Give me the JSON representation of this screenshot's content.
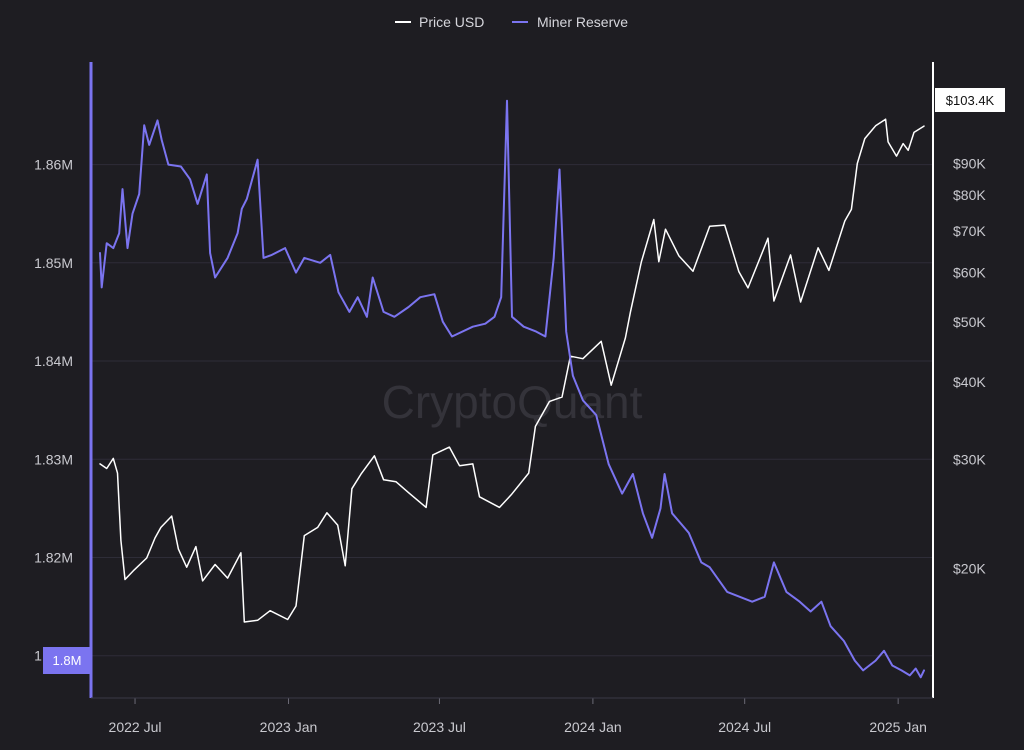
{
  "watermark": "CryptoQuant",
  "chart_data": {
    "type": "line",
    "title": "",
    "legend": {
      "placement": "top-center",
      "entries": [
        "Price USD",
        "Miner Reserve"
      ]
    },
    "grid": true,
    "colors": {
      "price": "#ffffff",
      "reserve": "#7b74f0",
      "background": "#1e1d22",
      "grid": "#2e2d38"
    },
    "x_axis": {
      "type": "date",
      "range": [
        "2022-05-20",
        "2025-02-01"
      ],
      "ticks": [
        {
          "date": "2022-07-01",
          "label": "2022 Jul"
        },
        {
          "date": "2023-01-01",
          "label": "2023 Jan"
        },
        {
          "date": "2023-07-01",
          "label": "2023 Jul"
        },
        {
          "date": "2024-01-01",
          "label": "2024 Jan"
        },
        {
          "date": "2024-07-01",
          "label": "2024 Jul"
        },
        {
          "date": "2025-01-01",
          "label": "2025 Jan"
        }
      ]
    },
    "y_left": {
      "label": "",
      "scale": "linear",
      "range": [
        1806000,
        1868000
      ],
      "ticks": [
        {
          "value": 1810000,
          "label": "1.81M"
        },
        {
          "value": 1820000,
          "label": "1.82M"
        },
        {
          "value": 1830000,
          "label": "1.83M"
        },
        {
          "value": 1840000,
          "label": "1.84M"
        },
        {
          "value": 1850000,
          "label": "1.85M"
        },
        {
          "value": 1860000,
          "label": "1.86M"
        }
      ],
      "current_value_label": "1.8M"
    },
    "y_right": {
      "label": "",
      "scale": "log",
      "range": [
        15000,
        120000
      ],
      "ticks": [
        {
          "value": 20000,
          "label": "$20K"
        },
        {
          "value": 30000,
          "label": "$30K"
        },
        {
          "value": 40000,
          "label": "$40K"
        },
        {
          "value": 50000,
          "label": "$50K"
        },
        {
          "value": 60000,
          "label": "$60K"
        },
        {
          "value": 70000,
          "label": "$70K"
        },
        {
          "value": 80000,
          "label": "$80K"
        },
        {
          "value": 90000,
          "label": "$90K"
        }
      ],
      "current_value_label": "$103.4K"
    },
    "series": [
      {
        "name": "Price USD",
        "axis": "right",
        "points": [
          [
            "2022-05-20",
            29500
          ],
          [
            "2022-05-28",
            29000
          ],
          [
            "2022-06-05",
            30100
          ],
          [
            "2022-06-10",
            28500
          ],
          [
            "2022-06-14",
            22200
          ],
          [
            "2022-06-19",
            19200
          ],
          [
            "2022-06-30",
            19900
          ],
          [
            "2022-07-15",
            20800
          ],
          [
            "2022-07-25",
            22400
          ],
          [
            "2022-08-01",
            23300
          ],
          [
            "2022-08-14",
            24300
          ],
          [
            "2022-08-22",
            21500
          ],
          [
            "2022-09-01",
            20100
          ],
          [
            "2022-09-12",
            21700
          ],
          [
            "2022-09-20",
            19100
          ],
          [
            "2022-10-05",
            20300
          ],
          [
            "2022-10-20",
            19300
          ],
          [
            "2022-11-05",
            21200
          ],
          [
            "2022-11-09",
            16400
          ],
          [
            "2022-11-25",
            16500
          ],
          [
            "2022-12-10",
            17100
          ],
          [
            "2022-12-31",
            16550
          ],
          [
            "2023-01-10",
            17400
          ],
          [
            "2023-01-20",
            22600
          ],
          [
            "2023-02-05",
            23300
          ],
          [
            "2023-02-16",
            24600
          ],
          [
            "2023-03-01",
            23500
          ],
          [
            "2023-03-10",
            20200
          ],
          [
            "2023-03-18",
            26900
          ],
          [
            "2023-03-29",
            28400
          ],
          [
            "2023-04-14",
            30400
          ],
          [
            "2023-04-25",
            27800
          ],
          [
            "2023-05-10",
            27600
          ],
          [
            "2023-05-25",
            26500
          ],
          [
            "2023-06-15",
            25100
          ],
          [
            "2023-06-23",
            30500
          ],
          [
            "2023-07-13",
            31400
          ],
          [
            "2023-07-25",
            29300
          ],
          [
            "2023-08-10",
            29500
          ],
          [
            "2023-08-18",
            26100
          ],
          [
            "2023-09-11",
            25100
          ],
          [
            "2023-09-25",
            26300
          ],
          [
            "2023-10-16",
            28500
          ],
          [
            "2023-10-24",
            33900
          ],
          [
            "2023-11-10",
            37200
          ],
          [
            "2023-11-25",
            37800
          ],
          [
            "2023-12-05",
            44000
          ],
          [
            "2023-12-20",
            43600
          ],
          [
            "2024-01-11",
            46500
          ],
          [
            "2024-01-23",
            39500
          ],
          [
            "2024-02-09",
            47100
          ],
          [
            "2024-02-15",
            51800
          ],
          [
            "2024-02-28",
            62400
          ],
          [
            "2024-03-14",
            73100
          ],
          [
            "2024-03-20",
            62500
          ],
          [
            "2024-03-28",
            70500
          ],
          [
            "2024-04-13",
            63900
          ],
          [
            "2024-04-30",
            60300
          ],
          [
            "2024-05-20",
            71300
          ],
          [
            "2024-06-07",
            71600
          ],
          [
            "2024-06-24",
            60200
          ],
          [
            "2024-07-05",
            56700
          ],
          [
            "2024-07-29",
            68200
          ],
          [
            "2024-08-05",
            54000
          ],
          [
            "2024-08-25",
            64100
          ],
          [
            "2024-09-06",
            53800
          ],
          [
            "2024-09-27",
            65800
          ],
          [
            "2024-10-10",
            60500
          ],
          [
            "2024-10-29",
            72700
          ],
          [
            "2024-11-06",
            75900
          ],
          [
            "2024-11-13",
            90000
          ],
          [
            "2024-11-22",
            98700
          ],
          [
            "2024-12-05",
            103500
          ],
          [
            "2024-12-17",
            106100
          ],
          [
            "2024-12-20",
            97500
          ],
          [
            "2024-12-30",
            92500
          ],
          [
            "2025-01-07",
            96900
          ],
          [
            "2025-01-13",
            94500
          ],
          [
            "2025-01-20",
            101000
          ],
          [
            "2025-02-01",
            103400
          ]
        ]
      },
      {
        "name": "Miner Reserve",
        "axis": "left",
        "points": [
          [
            "2022-05-20",
            1851000
          ],
          [
            "2022-05-22",
            1847500
          ],
          [
            "2022-05-28",
            1852000
          ],
          [
            "2022-06-05",
            1851500
          ],
          [
            "2022-06-12",
            1853000
          ],
          [
            "2022-06-16",
            1857500
          ],
          [
            "2022-06-22",
            1851500
          ],
          [
            "2022-06-28",
            1855000
          ],
          [
            "2022-07-06",
            1857000
          ],
          [
            "2022-07-12",
            1864000
          ],
          [
            "2022-07-18",
            1862000
          ],
          [
            "2022-07-28",
            1864500
          ],
          [
            "2022-08-02",
            1862500
          ],
          [
            "2022-08-10",
            1860000
          ],
          [
            "2022-08-25",
            1859800
          ],
          [
            "2022-09-05",
            1858500
          ],
          [
            "2022-09-14",
            1856000
          ],
          [
            "2022-09-25",
            1859000
          ],
          [
            "2022-09-29",
            1851000
          ],
          [
            "2022-10-05",
            1848500
          ],
          [
            "2022-10-20",
            1850500
          ],
          [
            "2022-11-01",
            1853000
          ],
          [
            "2022-11-06",
            1855500
          ],
          [
            "2022-11-12",
            1856500
          ],
          [
            "2022-11-25",
            1860500
          ],
          [
            "2022-12-02",
            1850500
          ],
          [
            "2022-12-12",
            1850800
          ],
          [
            "2022-12-28",
            1851500
          ],
          [
            "2023-01-10",
            1849000
          ],
          [
            "2023-01-20",
            1850500
          ],
          [
            "2023-02-08",
            1850000
          ],
          [
            "2023-02-20",
            1850800
          ],
          [
            "2023-03-02",
            1847000
          ],
          [
            "2023-03-15",
            1845000
          ],
          [
            "2023-03-25",
            1846500
          ],
          [
            "2023-04-05",
            1844500
          ],
          [
            "2023-04-12",
            1848500
          ],
          [
            "2023-04-25",
            1845000
          ],
          [
            "2023-05-08",
            1844500
          ],
          [
            "2023-05-25",
            1845500
          ],
          [
            "2023-06-08",
            1846500
          ],
          [
            "2023-06-25",
            1846800
          ],
          [
            "2023-07-05",
            1844000
          ],
          [
            "2023-07-16",
            1842500
          ],
          [
            "2023-08-10",
            1843500
          ],
          [
            "2023-08-25",
            1843800
          ],
          [
            "2023-09-05",
            1844500
          ],
          [
            "2023-09-13",
            1846500
          ],
          [
            "2023-09-20",
            1866500
          ],
          [
            "2023-09-26",
            1844500
          ],
          [
            "2023-10-10",
            1843500
          ],
          [
            "2023-10-25",
            1843000
          ],
          [
            "2023-11-05",
            1842500
          ],
          [
            "2023-11-15",
            1850500
          ],
          [
            "2023-11-22",
            1859500
          ],
          [
            "2023-11-30",
            1843000
          ],
          [
            "2023-12-08",
            1838500
          ],
          [
            "2023-12-20",
            1836000
          ],
          [
            "2024-01-05",
            1834500
          ],
          [
            "2024-01-20",
            1829500
          ],
          [
            "2024-02-05",
            1826500
          ],
          [
            "2024-02-18",
            1828500
          ],
          [
            "2024-03-01",
            1824500
          ],
          [
            "2024-03-12",
            1822000
          ],
          [
            "2024-03-22",
            1825000
          ],
          [
            "2024-03-27",
            1828500
          ],
          [
            "2024-04-05",
            1824500
          ],
          [
            "2024-04-15",
            1823500
          ],
          [
            "2024-04-25",
            1822500
          ],
          [
            "2024-05-10",
            1819500
          ],
          [
            "2024-05-20",
            1819000
          ],
          [
            "2024-06-10",
            1816500
          ],
          [
            "2024-06-25",
            1816000
          ],
          [
            "2024-07-10",
            1815500
          ],
          [
            "2024-07-25",
            1816000
          ],
          [
            "2024-08-05",
            1819500
          ],
          [
            "2024-08-20",
            1816500
          ],
          [
            "2024-09-05",
            1815500
          ],
          [
            "2024-09-18",
            1814500
          ],
          [
            "2024-10-01",
            1815500
          ],
          [
            "2024-10-12",
            1813000
          ],
          [
            "2024-10-28",
            1811500
          ],
          [
            "2024-11-10",
            1809500
          ],
          [
            "2024-11-20",
            1808500
          ],
          [
            "2024-12-05",
            1809500
          ],
          [
            "2024-12-15",
            1810500
          ],
          [
            "2024-12-25",
            1809000
          ],
          [
            "2025-01-05",
            1808500
          ],
          [
            "2025-01-15",
            1808000
          ],
          [
            "2025-01-22",
            1808700
          ],
          [
            "2025-01-28",
            1807800
          ],
          [
            "2025-02-01",
            1808500
          ]
        ]
      }
    ]
  }
}
